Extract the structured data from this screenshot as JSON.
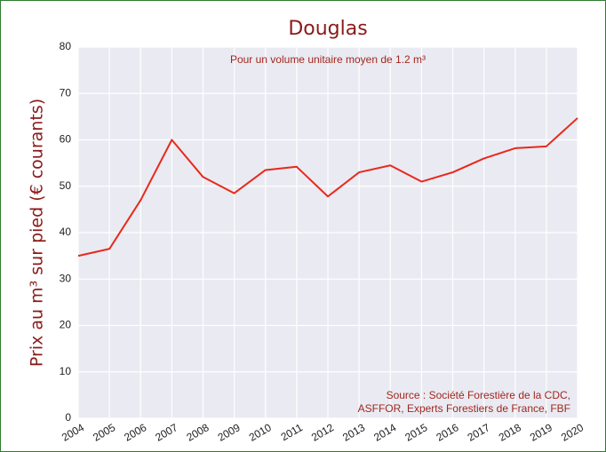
{
  "chart_data": {
    "type": "line",
    "title": "Douglas",
    "subtitle": "Pour un volume unitaire moyen de 1.2 m³",
    "y_label": "Prix au m³ sur pied (€ courants)",
    "source": [
      "Source : Société Forestière de la CDC,",
      "ASFFOR, Experts Forestiers de France, FBF"
    ],
    "categories": [
      "2004",
      "2005",
      "2006",
      "2007",
      "2008",
      "2009",
      "2010",
      "2011",
      "2012",
      "2013",
      "2014",
      "2015",
      "2016",
      "2017",
      "2018",
      "2019",
      "2020"
    ],
    "series": [
      {
        "name": "Douglas",
        "color": "#e8291c",
        "values": [
          35,
          36.5,
          47,
          60,
          52,
          48.5,
          53.5,
          54.2,
          47.8,
          53,
          54.5,
          51,
          53,
          56,
          58.2,
          58.6,
          64.7
        ]
      }
    ],
    "ylim": [
      0,
      80
    ],
    "yticks": [
      0,
      10,
      20,
      30,
      40,
      50,
      60,
      70,
      80
    ],
    "grid": true
  }
}
